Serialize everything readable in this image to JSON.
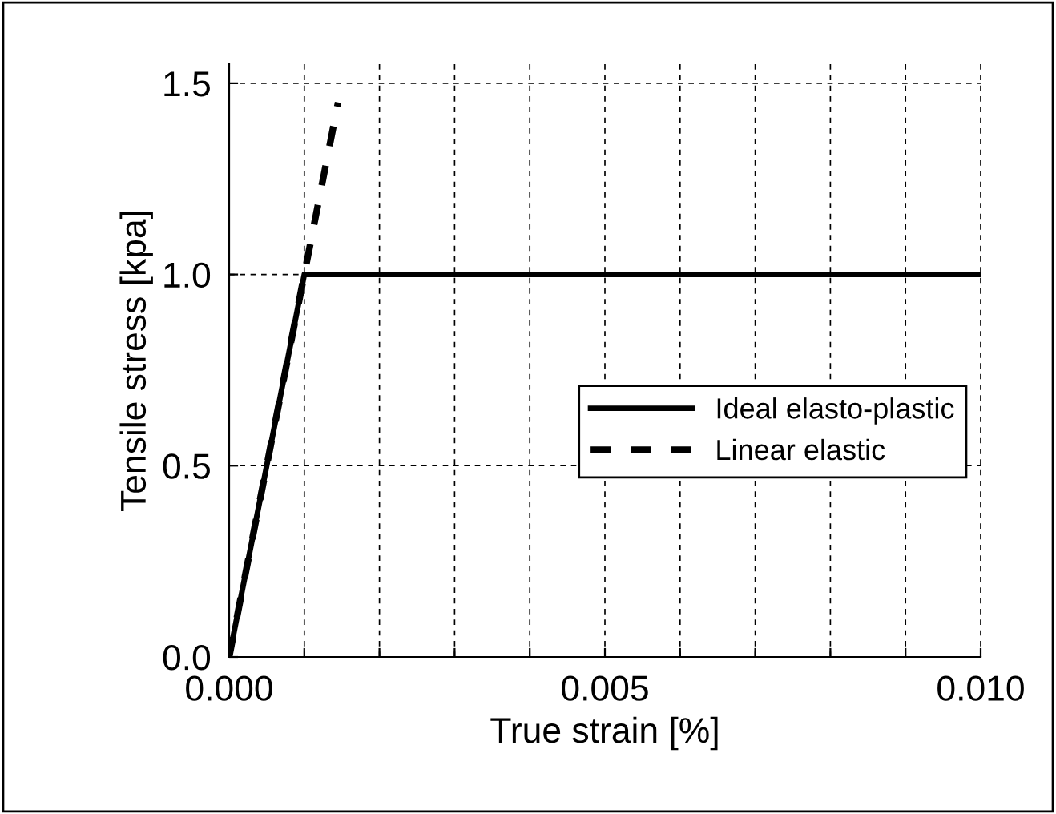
{
  "chart_data": {
    "type": "line",
    "xlabel": "True strain [%]",
    "ylabel": "Tensile stress [kpa]",
    "series": [
      {
        "name": "Ideal elasto-plastic",
        "color": "#000000",
        "x": [
          0,
          0.001,
          0.01
        ],
        "values": [
          0,
          1.0,
          1.0
        ],
        "line_style": "solid"
      },
      {
        "name": "Linear elastic",
        "color": "#000000",
        "x": [
          0,
          0.00145
        ],
        "values": [
          0,
          1.45
        ],
        "line_style": "dashed"
      }
    ],
    "xlim": [
      0,
      0.01
    ],
    "ylim": [
      0,
      1.55
    ],
    "xticks": [
      {
        "value": 0,
        "label": "0.000"
      },
      {
        "value": 0.001,
        "label": null
      },
      {
        "value": 0.002,
        "label": null
      },
      {
        "value": 0.003,
        "label": null
      },
      {
        "value": 0.004,
        "label": null
      },
      {
        "value": 0.005,
        "label": "0.005"
      },
      {
        "value": 0.006,
        "label": null
      },
      {
        "value": 0.007,
        "label": null
      },
      {
        "value": 0.008,
        "label": null
      },
      {
        "value": 0.009,
        "label": null
      },
      {
        "value": 0.01,
        "label": "0.010"
      }
    ],
    "yticks": [
      {
        "value": 0,
        "label": "0.0"
      },
      {
        "value": 0.5,
        "label": "0.5"
      },
      {
        "value": 1.0,
        "label": "1.0"
      },
      {
        "value": 1.5,
        "label": "1.5"
      }
    ],
    "grid": true,
    "legend": "right",
    "marker": "none"
  }
}
